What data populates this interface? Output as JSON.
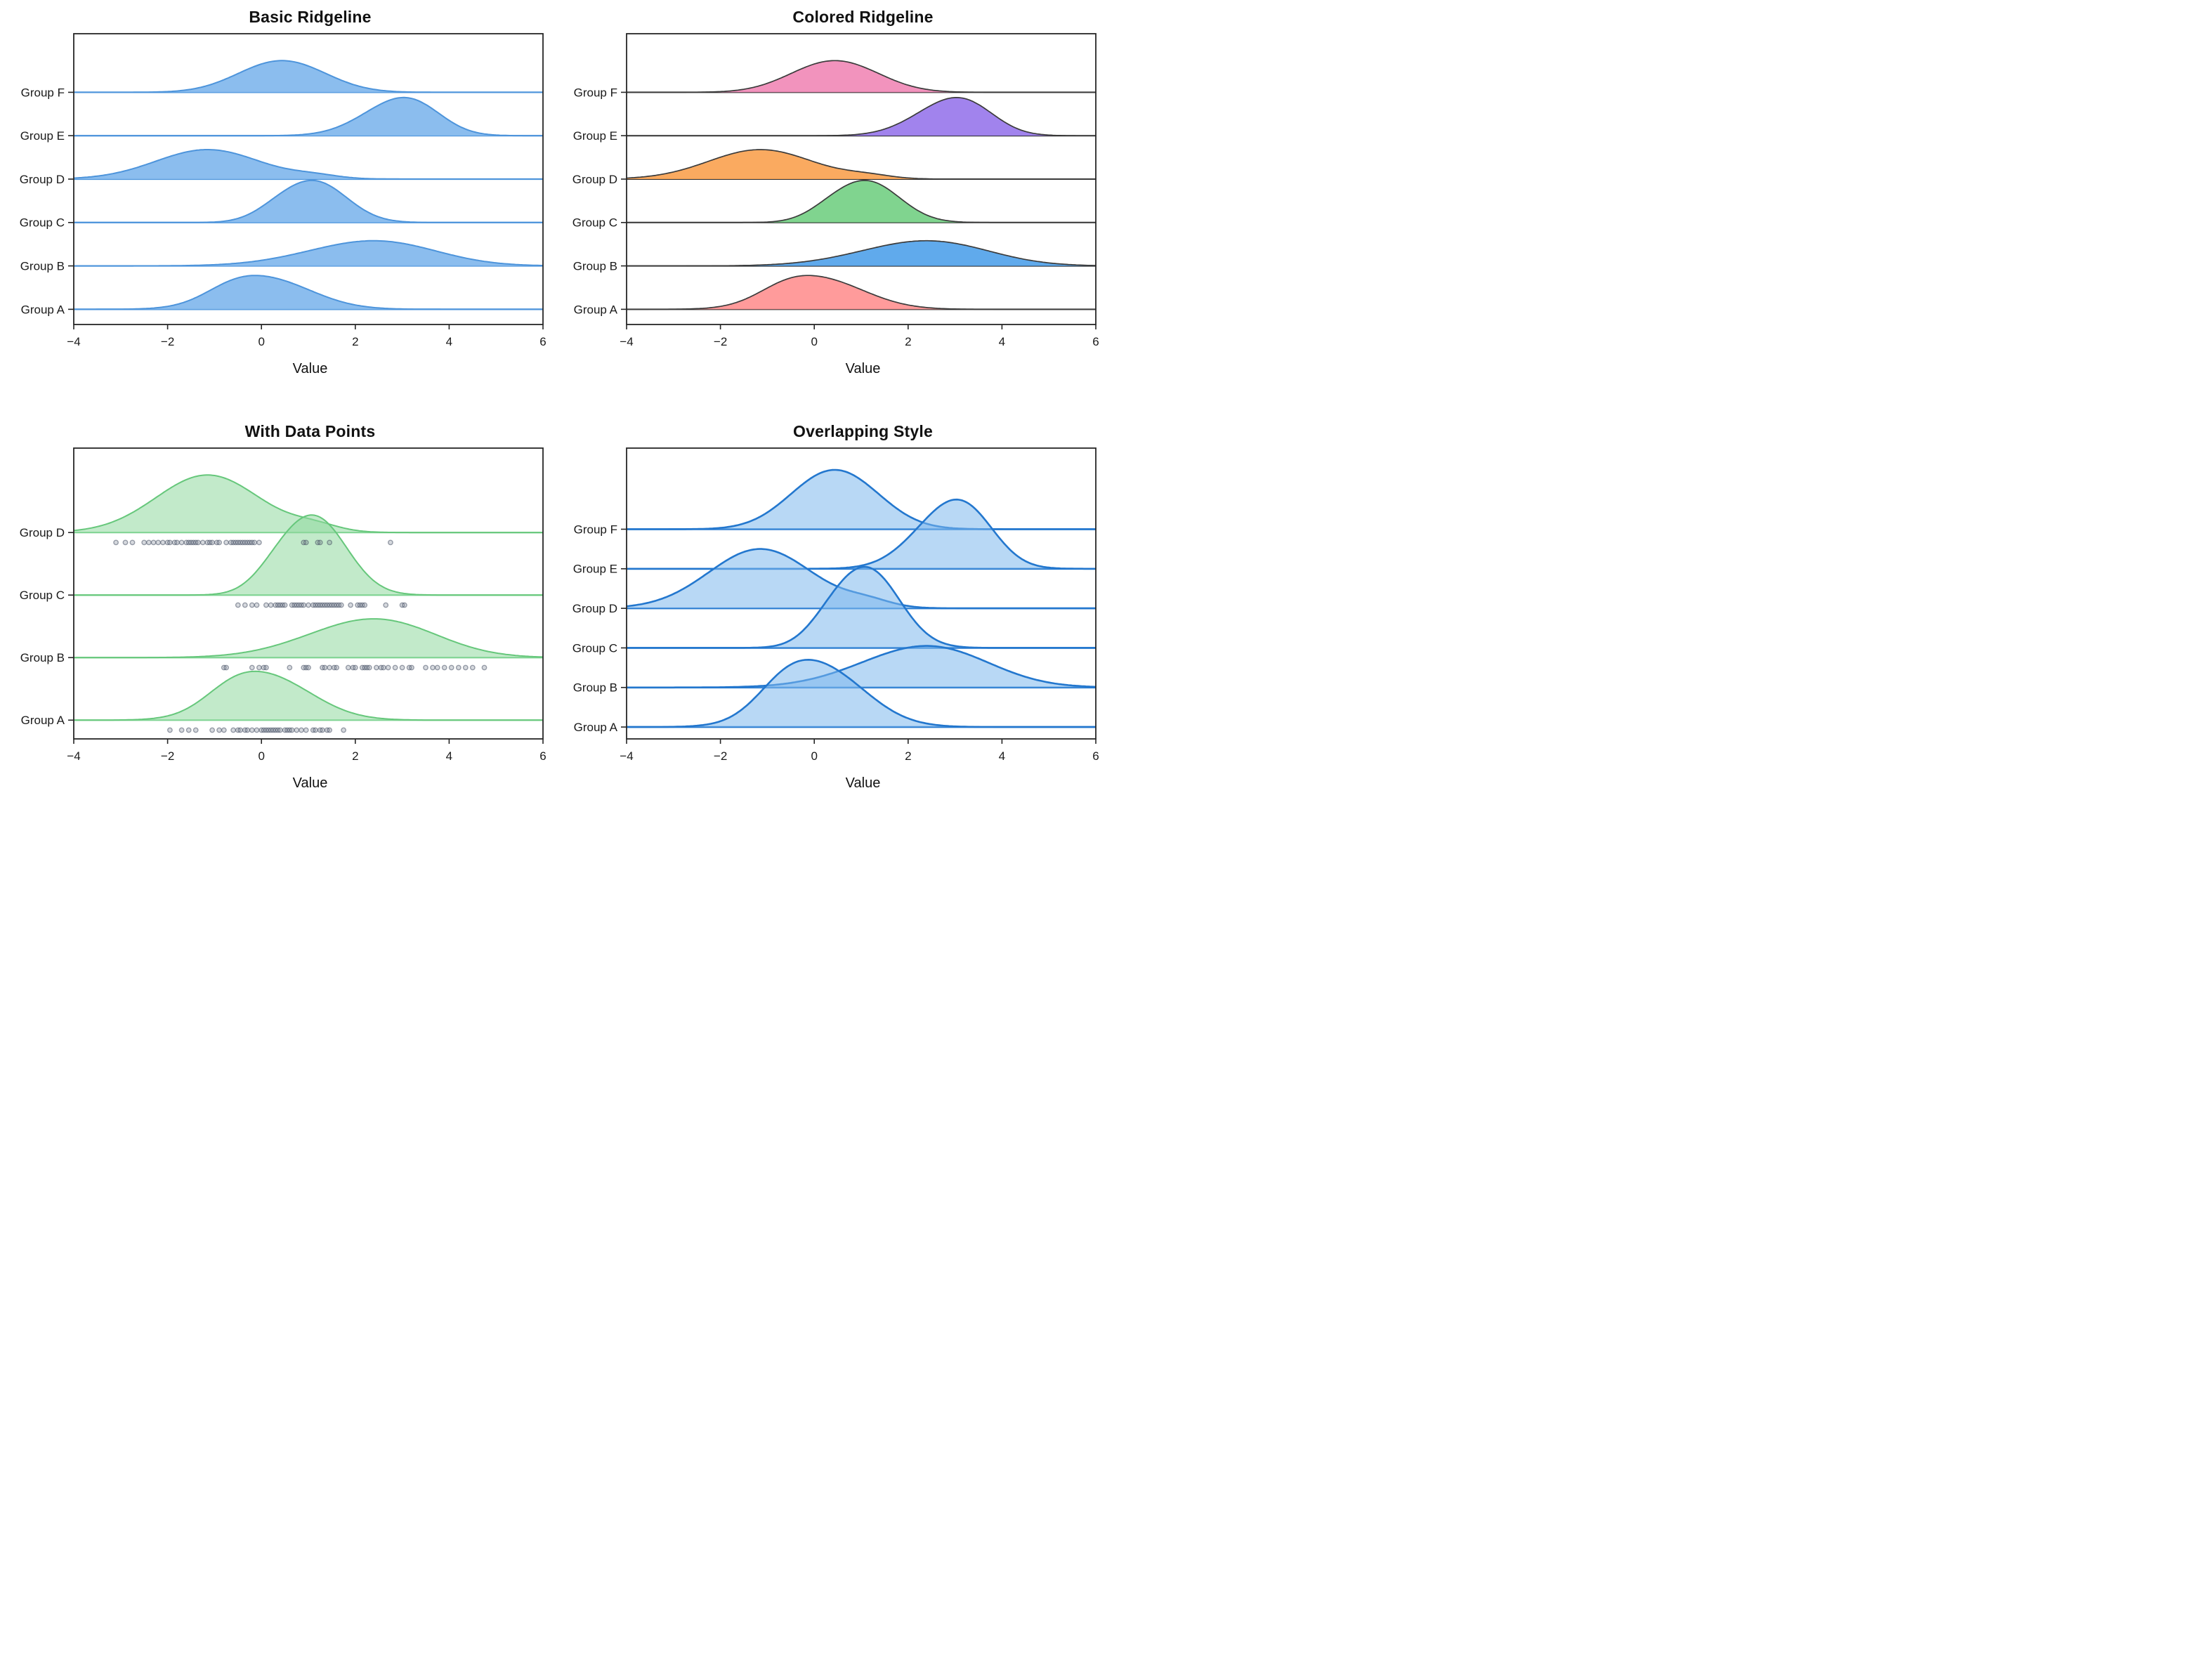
{
  "figure": {
    "background": "#ffffff",
    "spine_color": "#262626",
    "text_color": "#1a1a1a"
  },
  "chart_data": [
    {
      "type": "ridgeline",
      "title": "Basic Ridgeline",
      "xlabel": "Value",
      "xlim": [
        -4,
        6
      ],
      "xticks": [
        -4,
        -2,
        0,
        2,
        4,
        6
      ],
      "xtick_labels": [
        "−4",
        "−2",
        "0",
        "2",
        "4",
        "6"
      ],
      "grid": false,
      "layout": {
        "top_room": 1.35,
        "bottom_room": 0.35
      },
      "style": {
        "fill": "#85B9ED",
        "fill_opacity": 0.95,
        "edge": "#4D94DB",
        "edge_width": 2,
        "baseline": "#4D94DB",
        "baseline_width": 2.2
      },
      "groups": [
        {
          "label": "Group A",
          "mean": 0.2,
          "std": 1.0,
          "height": 0.78,
          "components": [
            {
              "mean": 0.15,
              "std": 0.95,
              "w": 1
            },
            {
              "mean": -0.65,
              "std": 0.6,
              "w": 0.3
            }
          ]
        },
        {
          "label": "Group B",
          "mean": 2.2,
          "std": 1.5,
          "height": 0.58,
          "components": [
            {
              "mean": 2.05,
              "std": 1.3,
              "w": 1
            },
            {
              "mean": 3.0,
              "std": 1.1,
              "w": 0.45
            }
          ]
        },
        {
          "label": "Group C",
          "mean": 1.1,
          "std": 0.8,
          "height": 0.97,
          "components": [
            {
              "mean": 1.15,
              "std": 0.68,
              "w": 1
            },
            {
              "mean": 0.3,
              "std": 0.5,
              "w": 0.18
            }
          ]
        },
        {
          "label": "Group D",
          "mean": -1.1,
          "std": 1.2,
          "height": 0.68,
          "components": [
            {
              "mean": -1.15,
              "std": 1.1,
              "w": 1
            },
            {
              "mean": 1.15,
              "std": 0.5,
              "w": 0.1
            }
          ]
        },
        {
          "label": "Group E",
          "mean": 2.9,
          "std": 0.85,
          "height": 0.88,
          "components": [
            {
              "mean": 2.75,
              "std": 0.75,
              "w": 1
            },
            {
              "mean": 3.35,
              "std": 0.6,
              "w": 0.6
            }
          ]
        },
        {
          "label": "Group F",
          "mean": 0.5,
          "std": 1.1,
          "height": 0.73,
          "components": [
            {
              "mean": 0.05,
              "std": 0.8,
              "w": 1
            },
            {
              "mean": 0.85,
              "std": 0.8,
              "w": 0.95
            }
          ]
        }
      ]
    },
    {
      "type": "ridgeline",
      "title": "Colored Ridgeline",
      "xlabel": "Value",
      "xlim": [
        -4,
        6
      ],
      "xticks": [
        -4,
        -2,
        0,
        2,
        4,
        6
      ],
      "xtick_labels": [
        "−4",
        "−2",
        "0",
        "2",
        "4",
        "6"
      ],
      "grid": false,
      "layout": {
        "top_room": 1.35,
        "bottom_room": 0.35
      },
      "style": {
        "fill_opacity": 0.95,
        "edge": "#3B3B3B",
        "edge_width": 1.7,
        "baseline": "#2E2E2E",
        "baseline_width": 2
      },
      "groups": [
        {
          "label": "Group A",
          "mean": 0.2,
          "std": 1.0,
          "height": 0.78,
          "color": "#FF9696",
          "components": [
            {
              "mean": 0.15,
              "std": 0.95,
              "w": 1
            },
            {
              "mean": -0.65,
              "std": 0.6,
              "w": 0.3
            }
          ]
        },
        {
          "label": "Group B",
          "mean": 2.2,
          "std": 1.5,
          "height": 0.58,
          "color": "#57A5EB",
          "components": [
            {
              "mean": 2.05,
              "std": 1.3,
              "w": 1
            },
            {
              "mean": 3.0,
              "std": 1.1,
              "w": 0.45
            }
          ]
        },
        {
          "label": "Group C",
          "mean": 1.1,
          "std": 0.8,
          "height": 0.97,
          "color": "#79D289",
          "components": [
            {
              "mean": 1.15,
              "std": 0.68,
              "w": 1
            },
            {
              "mean": 0.3,
              "std": 0.5,
              "w": 0.18
            }
          ]
        },
        {
          "label": "Group D",
          "mean": -1.1,
          "std": 1.2,
          "height": 0.68,
          "color": "#FAA557",
          "components": [
            {
              "mean": -1.15,
              "std": 1.1,
              "w": 1
            },
            {
              "mean": 1.15,
              "std": 0.5,
              "w": 0.1
            }
          ]
        },
        {
          "label": "Group E",
          "mean": 2.9,
          "std": 0.85,
          "height": 0.88,
          "color": "#9C7CEC",
          "components": [
            {
              "mean": 2.75,
              "std": 0.75,
              "w": 1
            },
            {
              "mean": 3.35,
              "std": 0.6,
              "w": 0.6
            }
          ]
        },
        {
          "label": "Group F",
          "mean": 0.5,
          "std": 1.1,
          "height": 0.73,
          "color": "#F18DB9",
          "components": [
            {
              "mean": 0.05,
              "std": 0.8,
              "w": 1
            },
            {
              "mean": 0.85,
              "std": 0.8,
              "w": 0.95
            }
          ]
        }
      ]
    },
    {
      "type": "ridgeline",
      "title": "With Data Points",
      "xlabel": "Value",
      "xlim": [
        -4,
        6
      ],
      "xticks": [
        -4,
        -2,
        0,
        2,
        4,
        6
      ],
      "xtick_labels": [
        "−4",
        "−2",
        "0",
        "2",
        "4",
        "6"
      ],
      "grid": false,
      "layout": {
        "top_room": 1.35,
        "bottom_room": 0.3,
        "point_offset": 0.16
      },
      "style": {
        "fill": "#8FD89F",
        "fill_opacity": 0.55,
        "edge": "#66C77B",
        "edge_width": 2,
        "baseline": "#7CD390",
        "baseline_width": 2.2,
        "point_stroke": "#3F4A5D",
        "point_fill": "#6B7689",
        "point_stroke_opacity": 0.5,
        "point_fill_opacity": 0.28,
        "point_radius": 3.2
      },
      "groups": [
        {
          "label": "Group A",
          "mean": 0.2,
          "std": 1.0,
          "height": 0.78,
          "components": [
            {
              "mean": 0.15,
              "std": 0.95,
              "w": 1
            },
            {
              "mean": -0.65,
              "std": 0.6,
              "w": 0.3
            }
          ],
          "points": [
            -1.95,
            -1.7,
            -1.55,
            -1.4,
            -1.05,
            -0.9,
            -0.8,
            -0.6,
            -0.5,
            -0.45,
            -0.35,
            -0.3,
            -0.2,
            -0.1,
            0.0,
            0.05,
            0.1,
            0.15,
            0.2,
            0.25,
            0.3,
            0.35,
            0.4,
            0.5,
            0.55,
            0.6,
            0.65,
            0.75,
            0.85,
            0.95,
            1.1,
            1.15,
            1.25,
            1.3,
            1.4,
            1.45,
            1.75
          ]
        },
        {
          "label": "Group B",
          "mean": 2.2,
          "std": 1.5,
          "height": 0.62,
          "components": [
            {
              "mean": 2.05,
              "std": 1.3,
              "w": 1
            },
            {
              "mean": 3.0,
              "std": 1.1,
              "w": 0.45
            }
          ],
          "points": [
            -0.8,
            -0.75,
            -0.2,
            -0.05,
            0.05,
            0.1,
            0.6,
            0.9,
            0.95,
            1.0,
            1.3,
            1.35,
            1.45,
            1.55,
            1.6,
            1.85,
            1.95,
            2.0,
            2.15,
            2.2,
            2.25,
            2.3,
            2.45,
            2.55,
            2.6,
            2.7,
            2.85,
            3.0,
            3.15,
            3.2,
            3.5,
            3.65,
            3.75,
            3.9,
            4.05,
            4.2,
            4.35,
            4.5,
            4.75
          ]
        },
        {
          "label": "Group C",
          "mean": 1.1,
          "std": 0.8,
          "height": 1.28,
          "components": [
            {
              "mean": 1.15,
              "std": 0.68,
              "w": 1
            },
            {
              "mean": 0.3,
              "std": 0.5,
              "w": 0.18
            }
          ],
          "points": [
            -0.5,
            -0.35,
            -0.2,
            -0.1,
            0.1,
            0.2,
            0.3,
            0.35,
            0.4,
            0.45,
            0.5,
            0.65,
            0.7,
            0.75,
            0.8,
            0.85,
            0.9,
            1.0,
            1.1,
            1.15,
            1.2,
            1.25,
            1.3,
            1.35,
            1.4,
            1.45,
            1.5,
            1.55,
            1.6,
            1.65,
            1.7,
            1.9,
            2.05,
            2.1,
            2.15,
            2.2,
            2.65,
            3.0,
            3.05
          ]
        },
        {
          "label": "Group D",
          "mean": -1.1,
          "std": 1.2,
          "height": 0.92,
          "components": [
            {
              "mean": -1.15,
              "std": 1.1,
              "w": 1
            },
            {
              "mean": 1.15,
              "std": 0.5,
              "w": 0.1
            }
          ],
          "points": [
            -3.1,
            -2.9,
            -2.75,
            -2.5,
            -2.4,
            -2.3,
            -2.2,
            -2.1,
            -2.0,
            -1.95,
            -1.85,
            -1.8,
            -1.7,
            -1.6,
            -1.55,
            -1.5,
            -1.45,
            -1.4,
            -1.35,
            -1.25,
            -1.15,
            -1.1,
            -1.05,
            -0.95,
            -0.9,
            -0.75,
            -0.65,
            -0.6,
            -0.55,
            -0.5,
            -0.45,
            -0.4,
            -0.35,
            -0.3,
            -0.25,
            -0.2,
            -0.15,
            -0.05,
            0.9,
            0.95,
            1.2,
            1.25,
            1.45,
            2.75
          ]
        }
      ]
    },
    {
      "type": "ridgeline",
      "title": "Overlapping Style",
      "xlabel": "Value",
      "xlim": [
        -4,
        6
      ],
      "xticks": [
        -4,
        -2,
        0,
        2,
        4,
        6
      ],
      "xtick_labels": [
        "−4",
        "−2",
        "0",
        "2",
        "4",
        "6"
      ],
      "grid": false,
      "layout": {
        "top_room": 2.05,
        "bottom_room": 0.3
      },
      "style": {
        "fill": "#7DB8EC",
        "fill_opacity": 0.55,
        "edge": "#2377CE",
        "edge_width": 2.6,
        "baseline": "#2377CE",
        "baseline_width": 2.6
      },
      "groups": [
        {
          "label": "Group A",
          "mean": 0.2,
          "std": 1.0,
          "height": 1.7,
          "components": [
            {
              "mean": 0.15,
              "std": 0.95,
              "w": 1
            },
            {
              "mean": -0.65,
              "std": 0.6,
              "w": 0.3
            }
          ]
        },
        {
          "label": "Group B",
          "mean": 2.2,
          "std": 1.5,
          "height": 1.05,
          "components": [
            {
              "mean": 2.05,
              "std": 1.3,
              "w": 1
            },
            {
              "mean": 3.0,
              "std": 1.1,
              "w": 0.45
            }
          ]
        },
        {
          "label": "Group C",
          "mean": 1.1,
          "std": 0.8,
          "height": 2.05,
          "components": [
            {
              "mean": 1.15,
              "std": 0.68,
              "w": 1
            },
            {
              "mean": 0.3,
              "std": 0.5,
              "w": 0.18
            }
          ]
        },
        {
          "label": "Group D",
          "mean": -1.1,
          "std": 1.2,
          "height": 1.5,
          "components": [
            {
              "mean": -1.15,
              "std": 1.1,
              "w": 1
            },
            {
              "mean": 1.15,
              "std": 0.5,
              "w": 0.1
            }
          ]
        },
        {
          "label": "Group E",
          "mean": 2.9,
          "std": 0.85,
          "height": 1.75,
          "components": [
            {
              "mean": 2.75,
              "std": 0.75,
              "w": 1
            },
            {
              "mean": 3.35,
              "std": 0.6,
              "w": 0.6
            }
          ]
        },
        {
          "label": "Group F",
          "mean": 0.5,
          "std": 1.1,
          "height": 1.5,
          "components": [
            {
              "mean": 0.05,
              "std": 0.8,
              "w": 1
            },
            {
              "mean": 0.85,
              "std": 0.8,
              "w": 0.95
            }
          ]
        }
      ]
    }
  ]
}
